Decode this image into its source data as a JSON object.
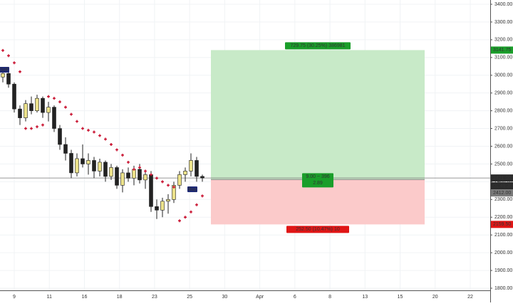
{
  "chart_data": {
    "type": "candlestick",
    "up_color": "#ece28a",
    "down_color": "#222222",
    "sar_color": "#c8102e",
    "ylim": [
      1790,
      3424
    ],
    "yticks": [
      {
        "value": 1800,
        "label": "1800.00"
      },
      {
        "value": 1900,
        "label": "1900.00"
      },
      {
        "value": 2000,
        "label": "2000.00"
      },
      {
        "value": 2100,
        "label": "2100.00"
      },
      {
        "value": 2200,
        "label": "2200.00"
      },
      {
        "value": 2300,
        "label": "2300.00"
      },
      {
        "value": 2400,
        "label": "2400.00"
      },
      {
        "value": 2500,
        "label": "2500.00"
      },
      {
        "value": 2600,
        "label": "2600.00"
      },
      {
        "value": 2700,
        "label": "2700.00"
      },
      {
        "value": 2800,
        "label": "2800.00"
      },
      {
        "value": 2900,
        "label": "2900.00"
      },
      {
        "value": 3000,
        "label": "3000.00"
      },
      {
        "value": 3100,
        "label": "3100.00"
      },
      {
        "value": 3200,
        "label": "3200.00"
      },
      {
        "value": 3300,
        "label": "3300.00"
      },
      {
        "value": 3400,
        "label": "3400.00"
      }
    ],
    "xticks": [
      "9",
      "11",
      "16",
      "18",
      "23",
      "25",
      "30",
      "Apr",
      "6",
      "8",
      "13",
      "15",
      "20",
      "22"
    ],
    "grid": true,
    "open": [
      2990,
      3010,
      2950,
      2810,
      2760,
      2840,
      2800,
      2870,
      2790,
      2820,
      2700,
      2610,
      2560,
      2450,
      2530,
      2500,
      2520,
      2460,
      2510,
      2430,
      2480,
      2380,
      2450,
      2420,
      2470,
      2410,
      2440,
      2260,
      2240,
      2290,
      2300,
      2380,
      2440,
      2460,
      2520,
      2430
    ],
    "high": [
      3040,
      3020,
      2960,
      2830,
      2860,
      2880,
      2890,
      2880,
      2850,
      2830,
      2720,
      2650,
      2580,
      2560,
      2610,
      2560,
      2540,
      2530,
      2520,
      2500,
      2490,
      2470,
      2480,
      2490,
      2500,
      2460,
      2460,
      2300,
      2310,
      2330,
      2400,
      2460,
      2480,
      2560,
      2540,
      2440
    ],
    "low": [
      2960,
      2930,
      2790,
      2720,
      2740,
      2780,
      2790,
      2760,
      2740,
      2680,
      2580,
      2520,
      2420,
      2430,
      2480,
      2440,
      2420,
      2430,
      2400,
      2410,
      2360,
      2340,
      2400,
      2380,
      2390,
      2360,
      2230,
      2190,
      2200,
      2220,
      2280,
      2360,
      2400,
      2430,
      2400,
      2400
    ],
    "close": [
      3010,
      2950,
      2810,
      2760,
      2840,
      2800,
      2870,
      2790,
      2820,
      2700,
      2610,
      2560,
      2450,
      2530,
      2500,
      2520,
      2460,
      2510,
      2430,
      2480,
      2380,
      2450,
      2420,
      2470,
      2410,
      2440,
      2260,
      2240,
      2290,
      2300,
      2380,
      2440,
      2460,
      2520,
      2430,
      2421
    ],
    "sar": [
      3140,
      3110,
      3070,
      3020,
      2700,
      2700,
      2710,
      2720,
      2880,
      2870,
      2850,
      2820,
      2780,
      2740,
      2700,
      2690,
      2680,
      2660,
      2640,
      2610,
      2580,
      2550,
      2510,
      2470,
      2480,
      2460,
      2440,
      2420,
      2400,
      2380,
      2370,
      2180,
      2200,
      2230,
      2270,
      2320
    ],
    "last_price": {
      "value": 2421,
      "label": "2421.00",
      "countdown": "01:49:30"
    },
    "position": {
      "target": 3141.75,
      "target_label": "3141.75",
      "entry": 2412,
      "entry_label": "2412.00",
      "stop": 2159.5,
      "stop_label": "2159.50",
      "profit_text": "729.75 (30.25%) 386981",
      "middle_text": "9.00 ~ 396",
      "ratio_text": "2.89",
      "loss_text": "252.50 (10.47%) 10",
      "profit_color": "#c8eac8",
      "loss_color": "#fbcaca"
    },
    "signals": [
      "Sell",
      "Buy"
    ]
  }
}
